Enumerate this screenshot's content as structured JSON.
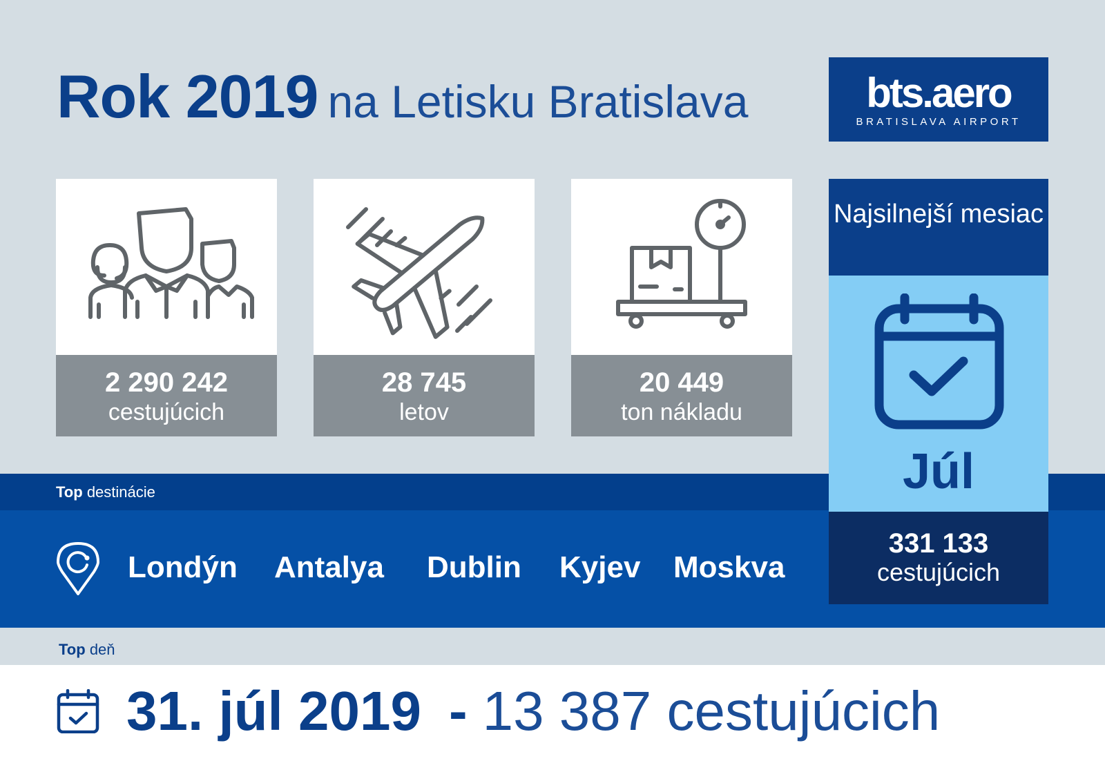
{
  "header": {
    "title_bold": "Rok 2019",
    "title_rest": "na Letisku Bratislava"
  },
  "logo": {
    "brand": "bts.aero",
    "subtitle": "BRATISLAVA AIRPORT"
  },
  "stats": [
    {
      "icon": "people-icon",
      "value": "2 290 242",
      "label": "cestujúcich"
    },
    {
      "icon": "airplane-icon",
      "value": "28 745",
      "label": "letov"
    },
    {
      "icon": "cargo-scale-icon",
      "value": "20 449",
      "label": "ton nákladu"
    }
  ],
  "top_month": {
    "heading": "Najsilnejší mesiac",
    "icon": "calendar-check-icon",
    "month": "Júl",
    "value": "331 133",
    "label": "cestujúcich"
  },
  "top_destinations": {
    "label_bold": "Top",
    "label_rest": "destinácie",
    "icon": "location-pin-icon",
    "items": [
      "Londýn",
      "Antalya",
      "Dublin",
      "Kyjev",
      "Moskva"
    ]
  },
  "top_day": {
    "label_bold": "Top",
    "label_rest": "deň",
    "icon": "calendar-check-icon",
    "date": "31. júl 2019",
    "dash": "-",
    "count": "13 387 cestujúcich"
  },
  "colors": {
    "navy": "#0b3f8a",
    "blue": "#0550a6",
    "light_blue": "#84cdf5",
    "gray": "#878f95",
    "background": "#d4dde3",
    "icon_gray": "#5f6468"
  }
}
